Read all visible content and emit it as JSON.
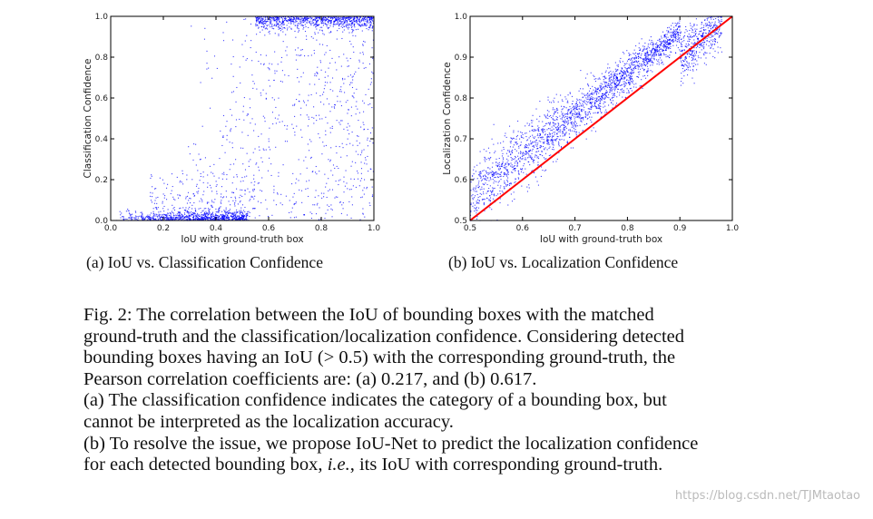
{
  "chart_data": [
    {
      "type": "scatter",
      "id": "a",
      "xlabel": "IoU with ground-truth box",
      "ylabel": "Classification Confidence",
      "xlim": [
        0.0,
        1.0
      ],
      "ylim": [
        0.0,
        1.0
      ],
      "xticks": [
        "0.0",
        "0.2",
        "0.4",
        "0.6",
        "0.8",
        "1.0"
      ],
      "yticks": [
        "0.0",
        "0.2",
        "0.4",
        "0.6",
        "0.8",
        "1.0"
      ],
      "point_color": "#0000ff",
      "n_points": 2600,
      "pearson_r_iou_gt_0_5": 0.217,
      "description_of_distribution": "dense band near 0.0 for IoU<0.5, dense band near 1.0 for IoU>0.55, sparse spread elsewhere"
    },
    {
      "type": "scatter",
      "id": "b",
      "xlabel": "IoU with ground-truth box",
      "ylabel": "Localization Confidence",
      "xlim": [
        0.5,
        1.0
      ],
      "ylim": [
        0.5,
        1.0
      ],
      "xticks": [
        "0.5",
        "0.6",
        "0.7",
        "0.8",
        "0.9",
        "1.0"
      ],
      "yticks": [
        "0.5",
        "0.6",
        "0.7",
        "0.8",
        "0.9",
        "1.0"
      ],
      "point_color": "#0000ff",
      "line_color": "#ff0000",
      "reference_line": [
        [
          0.5,
          0.5
        ],
        [
          1.0,
          1.0
        ]
      ],
      "n_points": 2600,
      "pearson_r_iou_gt_0_5": 0.617
    }
  ],
  "subcaptions": {
    "a": "(a) IoU vs. Classification Confidence",
    "b": "(b) IoU vs. Localization Confidence"
  },
  "caption": {
    "lines": [
      "Fig. 2: The correlation between the IoU of bounding boxes with the matched",
      "ground-truth and the classification/localization confidence. Considering detected",
      "bounding boxes having an IoU (> 0.5) with the corresponding ground-truth, the",
      "Pearson correlation coefficients are: (a) 0.217, and (b) 0.617.",
      "(a) The classification confidence indicates the category of a bounding box, but",
      "cannot be interpreted as the localization accuracy.",
      "(b) To resolve the issue, we propose IoU-Net to predict the localization confidence"
    ],
    "last_line_pre": "for each detected bounding box, ",
    "last_line_italic": "i.e.",
    "last_line_post": ", its IoU with corresponding ground-truth."
  },
  "watermark": "https://blog.csdn.net/TJMtaotao"
}
